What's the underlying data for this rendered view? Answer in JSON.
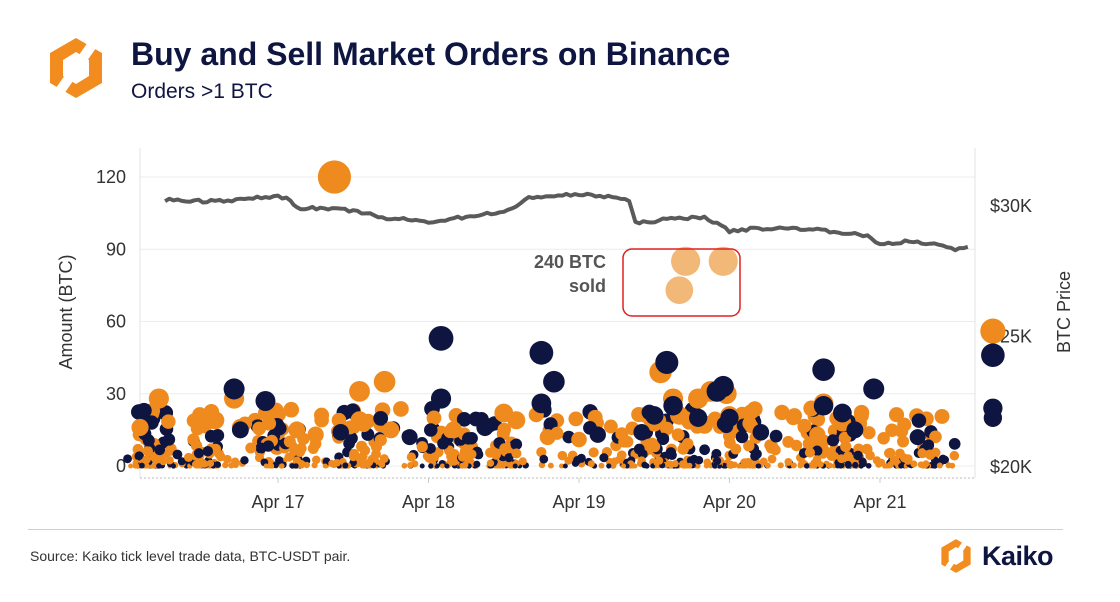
{
  "header": {
    "title": "Buy and Sell Market Orders on Binance",
    "subtitle": "Orders >1 BTC"
  },
  "footer": {
    "source": "Source: Kaiko tick level trade data, BTC-USDT pair.",
    "brand": "Kaiko"
  },
  "colors": {
    "buy": "#0e1540",
    "sell": "#ef8a1f",
    "highlight": "#f2b877",
    "price_line": "#5a5a5a",
    "annotation_box": "#e02020",
    "logo_orange": "#f28c1e"
  },
  "icons": {
    "logo": "kaiko-logo-icon"
  },
  "chart_data": {
    "type": "scatter",
    "title": "",
    "ylabel": "Amount (BTC)",
    "y2label": "BTC Price",
    "xlabel": "",
    "ylim": [
      0,
      130
    ],
    "y2lim": [
      20000,
      33000
    ],
    "xlim": [
      "2022-04-16 06:00",
      "2022-04-21 18:00"
    ],
    "yticks": [
      0,
      30,
      60,
      90,
      120
    ],
    "y2ticks": [
      20000,
      25000,
      30000
    ],
    "y2tick_labels": [
      "$20K",
      "$25K",
      "$30K"
    ],
    "xticks": [
      "2022-04-17",
      "2022-04-18",
      "2022-04-19",
      "2022-04-20",
      "2022-04-21"
    ],
    "xtick_labels": [
      "Apr 17",
      "Apr 18",
      "Apr 19",
      "Apr 20",
      "Apr 21"
    ],
    "grid": true,
    "annotation": {
      "line1": "240 BTC",
      "line2": "sold"
    },
    "series": [
      {
        "name": "price",
        "axis": "right",
        "points": [
          [
            "2022-04-16 06:00",
            30200
          ],
          [
            "2022-04-16 12:00",
            30150
          ],
          [
            "2022-04-16 18:00",
            30200
          ],
          [
            "2022-04-17 00:00",
            30350
          ],
          [
            "2022-04-17 02:00",
            30180
          ],
          [
            "2022-04-17 03:00",
            29900
          ],
          [
            "2022-04-17 08:00",
            29850
          ],
          [
            "2022-04-17 12:00",
            29780
          ],
          [
            "2022-04-17 14:00",
            29700
          ],
          [
            "2022-04-17 16:00",
            29500
          ],
          [
            "2022-04-17 20:00",
            29450
          ],
          [
            "2022-04-18 00:00",
            29350
          ],
          [
            "2022-04-18 06:00",
            29550
          ],
          [
            "2022-04-18 12:00",
            29750
          ],
          [
            "2022-04-18 14:00",
            29900
          ],
          [
            "2022-04-18 16:00",
            30300
          ],
          [
            "2022-04-18 20:00",
            30350
          ],
          [
            "2022-04-19 00:00",
            30400
          ],
          [
            "2022-04-19 06:00",
            30300
          ],
          [
            "2022-04-19 08:00",
            30150
          ],
          [
            "2022-04-19 09:00",
            29300
          ],
          [
            "2022-04-19 14:00",
            29450
          ],
          [
            "2022-04-19 20:00",
            29550
          ],
          [
            "2022-04-20 00:00",
            29000
          ],
          [
            "2022-04-20 04:00",
            29100
          ],
          [
            "2022-04-20 12:00",
            29100
          ],
          [
            "2022-04-20 18:00",
            28950
          ],
          [
            "2022-04-20 22:00",
            28800
          ],
          [
            "2022-04-21 00:00",
            28500
          ],
          [
            "2022-04-21 04:00",
            28600
          ],
          [
            "2022-04-21 10:00",
            28450
          ],
          [
            "2022-04-21 12:00",
            28300
          ],
          [
            "2022-04-21 14:00",
            28400
          ]
        ]
      },
      {
        "name": "sell",
        "points": [
          [
            "2022-04-17 09:00",
            120
          ],
          [
            "2022-04-19 17:00",
            85
          ],
          [
            "2022-04-19 23:00",
            85
          ],
          [
            "2022-04-19 16:00",
            73
          ],
          [
            "2022-04-21 18:00",
            56
          ],
          [
            "2022-04-19 13:00",
            39
          ],
          [
            "2022-04-17 17:00",
            35
          ],
          [
            "2022-04-17 13:00",
            31
          ],
          [
            "2022-04-16 05:00",
            28
          ],
          [
            "2022-04-16 17:00",
            28
          ],
          [
            "2022-04-19 21:00",
            31
          ],
          [
            "2022-04-19 23:30",
            30
          ],
          [
            "2022-04-19 15:00",
            28
          ],
          [
            "2022-04-19 19:00",
            28
          ],
          [
            "2022-04-20 15:00",
            26
          ],
          [
            "2022-04-18 12:00",
            22
          ],
          [
            "2022-04-16 02:00",
            16
          ],
          [
            "2022-04-16 18:00",
            16
          ],
          [
            "2022-04-17 03:00",
            15
          ],
          [
            "2022-04-17 13:00",
            19
          ],
          [
            "2022-04-17 18:00",
            15
          ],
          [
            "2022-04-18 04:00",
            15
          ],
          [
            "2022-04-18 14:00",
            19
          ],
          [
            "2022-04-19 00:00",
            11
          ],
          [
            "2022-04-19 12:00",
            18
          ],
          [
            "2022-04-19 16:00",
            21
          ],
          [
            "2022-04-20 00:00",
            21
          ],
          [
            "2022-04-20 18:00",
            18
          ],
          [
            "2022-04-21 18:00",
            20
          ],
          [
            "2022-04-16 14:00",
            19
          ],
          [
            "2022-04-17 06:00",
            13
          ],
          [
            "2022-04-18 19:00",
            12
          ],
          [
            "2022-04-19 20:00",
            17
          ],
          [
            "2022-04-20 14:00",
            13
          ]
        ]
      },
      {
        "name": "buy",
        "points": [
          [
            "2022-04-18 02:00",
            53
          ],
          [
            "2022-04-18 18:00",
            47
          ],
          [
            "2022-04-19 14:00",
            43
          ],
          [
            "2022-04-21 18:00",
            46
          ],
          [
            "2022-04-20 15:00",
            40
          ],
          [
            "2022-04-18 20:00",
            35
          ],
          [
            "2022-04-19 23:00",
            33
          ],
          [
            "2022-04-19 22:00",
            31
          ],
          [
            "2022-04-16 17:00",
            32
          ],
          [
            "2022-04-20 23:00",
            32
          ],
          [
            "2022-04-16 22:00",
            27
          ],
          [
            "2022-04-18 02:00",
            28
          ],
          [
            "2022-04-18 18:00",
            26
          ],
          [
            "2022-04-21 18:00",
            24
          ],
          [
            "2022-04-19 15:00",
            25
          ],
          [
            "2022-04-20 15:00",
            25
          ],
          [
            "2022-04-20 18:00",
            22
          ],
          [
            "2022-04-19 19:00",
            20
          ],
          [
            "2022-04-20 00:00",
            20
          ],
          [
            "2022-04-21 18:00",
            20
          ],
          [
            "2022-04-19 12:00",
            21
          ],
          [
            "2022-04-16 18:00",
            15
          ],
          [
            "2022-04-17 10:00",
            14
          ],
          [
            "2022-04-18 09:00",
            16
          ],
          [
            "2022-04-19 03:00",
            13
          ],
          [
            "2022-04-20 05:00",
            14
          ],
          [
            "2022-04-20 20:00",
            15
          ],
          [
            "2022-04-21 06:00",
            12
          ],
          [
            "2022-04-17 21:00",
            12
          ],
          [
            "2022-04-19 10:00",
            14
          ]
        ]
      }
    ]
  }
}
